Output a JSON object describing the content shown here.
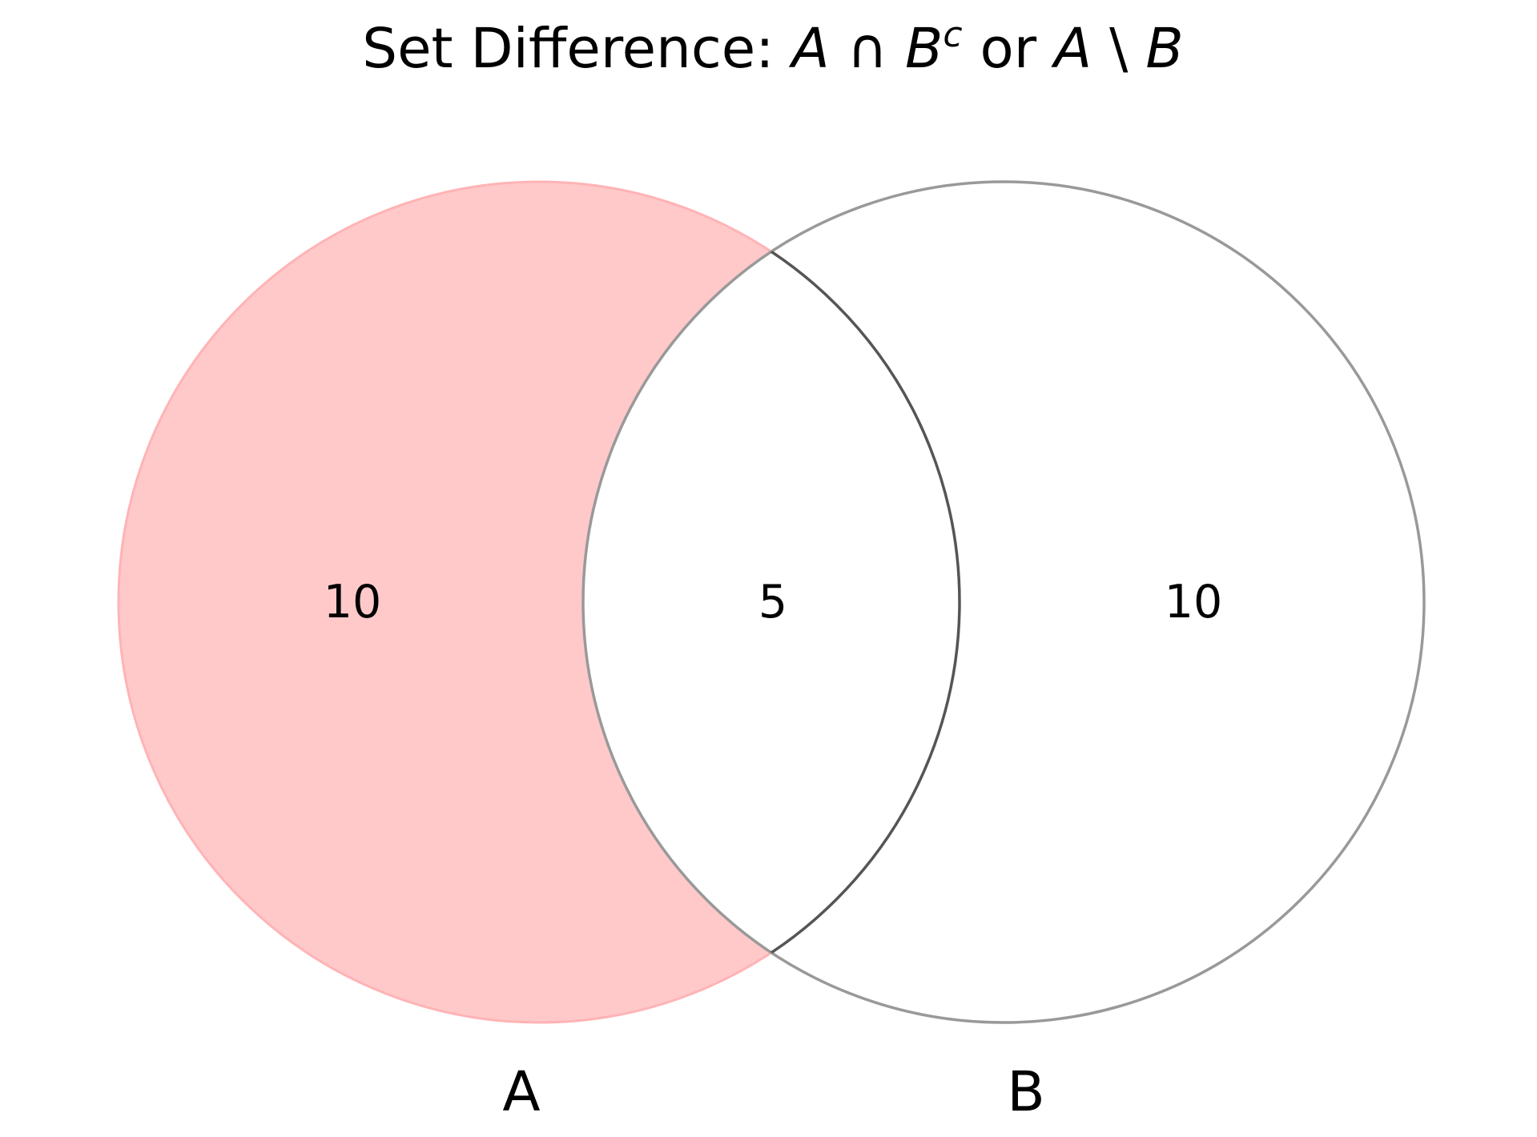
{
  "title": {
    "prefix": "Set Difference: ",
    "math_a1": "A",
    "op_cap": " ∩ ",
    "math_b1": "B",
    "sup_c": "c",
    "or_text": " or ",
    "math_a2": "A",
    "op_minus": " \\ ",
    "math_b2": "B"
  },
  "sets": [
    {
      "name": "A",
      "highlighted": true
    },
    {
      "name": "B",
      "highlighted": false
    }
  ],
  "regions": {
    "a_only": "10",
    "intersection": "5",
    "b_only": "10"
  },
  "colors": {
    "highlight_fill": "#ffc9ca",
    "highlight_edge": "#ffb3b5",
    "outline": "#999999",
    "outline_dark": "#555555"
  }
}
